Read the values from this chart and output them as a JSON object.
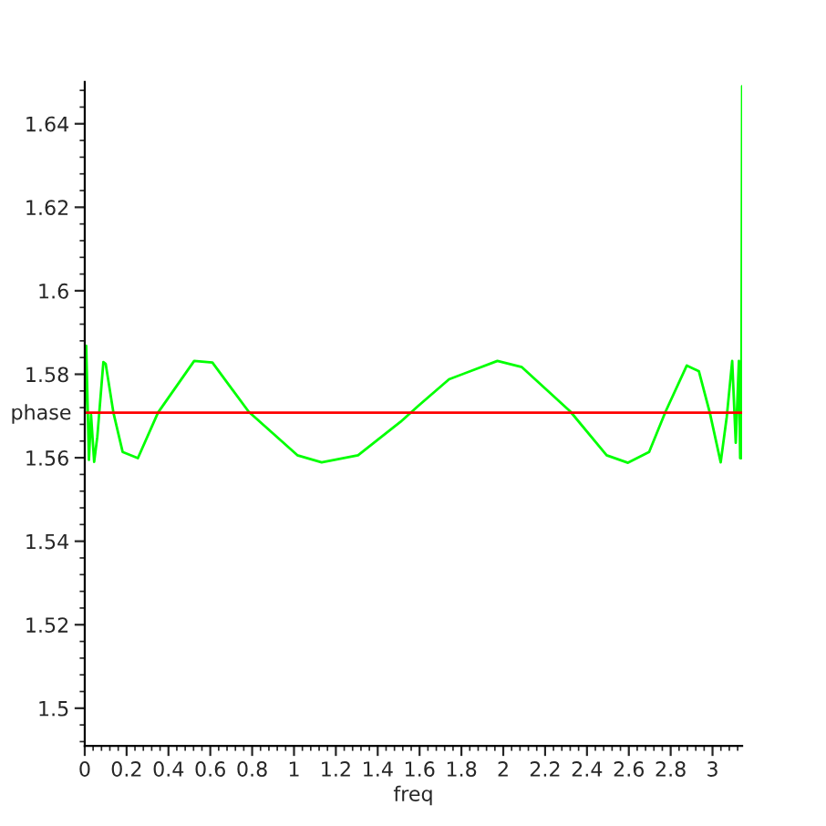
{
  "chart_data": {
    "type": "line",
    "xlabel": "freq",
    "ylabel": "phase",
    "xlim": [
      0,
      3.1416
    ],
    "ylim": [
      1.491,
      1.65
    ],
    "xticks": [
      0,
      0.2,
      0.4,
      0.6,
      0.8,
      1,
      1.2,
      1.4,
      1.6,
      1.8,
      2,
      2.2,
      2.4,
      2.6,
      2.8,
      3
    ],
    "yticks": [
      1.5,
      1.52,
      1.54,
      1.56,
      1.58,
      1.6,
      1.62,
      1.64
    ],
    "grid": false,
    "marker": "none",
    "line_style": "solid",
    "series": [
      {
        "color": "#00ff00",
        "x": [
          0,
          0.007,
          0.02,
          0.03,
          0.045,
          0.06,
          0.089,
          0.1,
          0.137,
          0.181,
          0.254,
          0.35,
          0.523,
          0.61,
          0.784,
          1.016,
          1.132,
          1.306,
          1.509,
          1.596,
          1.741,
          1.972,
          2.089,
          2.32,
          2.494,
          2.596,
          2.697,
          2.776,
          2.877,
          2.935,
          2.987,
          3.039,
          3.068,
          3.094,
          3.111,
          3.126,
          3.132,
          3.137,
          3.1416
        ],
        "values": [
          1.571,
          1.5868,
          1.5595,
          1.5703,
          1.559,
          1.565,
          1.5829,
          1.5825,
          1.5708,
          1.5614,
          1.5599,
          1.5708,
          1.5832,
          1.5828,
          1.571,
          1.5606,
          1.5589,
          1.5606,
          1.5686,
          1.5725,
          1.5788,
          1.5832,
          1.5817,
          1.5711,
          1.5606,
          1.5588,
          1.5614,
          1.5711,
          1.5821,
          1.5807,
          1.5708,
          1.5589,
          1.5698,
          1.5832,
          1.5636,
          1.5832,
          1.5599,
          1.5599,
          1.649
        ]
      },
      {
        "color": "#ff0000",
        "x": [
          0,
          3.1416
        ],
        "values": [
          1.5708,
          1.5708
        ]
      }
    ]
  }
}
